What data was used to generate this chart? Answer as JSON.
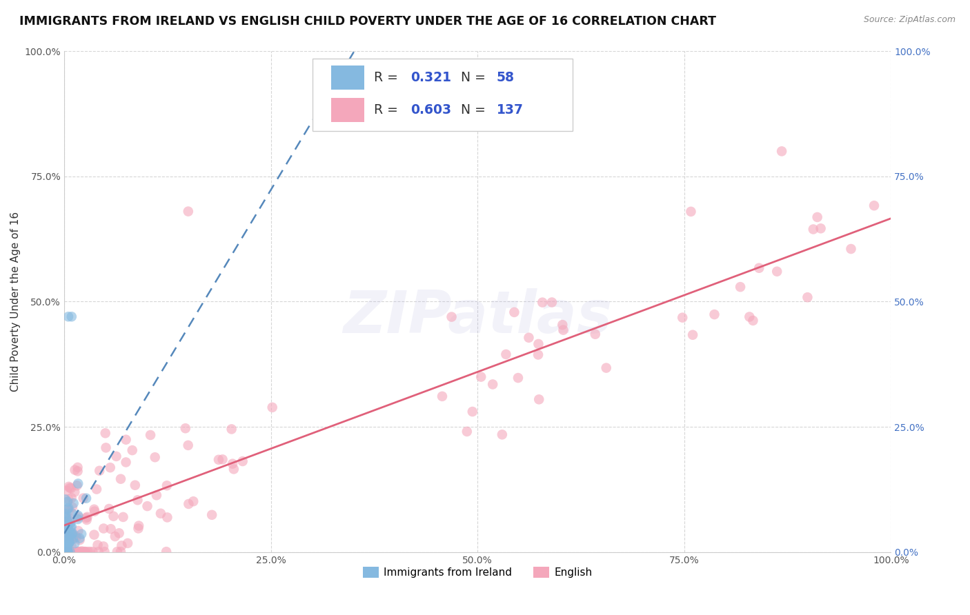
{
  "title": "IMMIGRANTS FROM IRELAND VS ENGLISH CHILD POVERTY UNDER THE AGE OF 16 CORRELATION CHART",
  "source": "Source: ZipAtlas.com",
  "ylabel": "Child Poverty Under the Age of 16",
  "R_blue": 0.321,
  "N_blue": 58,
  "R_pink": 0.603,
  "N_pink": 137,
  "blue_color": "#85b9e0",
  "pink_color": "#f4a7bb",
  "blue_line_color": "#5588bb",
  "pink_line_color": "#e0607a",
  "background_color": "#ffffff",
  "grid_color": "#cccccc",
  "title_fontsize": 12.5,
  "axis_label_fontsize": 11,
  "tick_fontsize": 10,
  "watermark": "ZIPatlas",
  "legend_labels": [
    "Immigrants from Ireland",
    "English"
  ],
  "xlim": [
    0,
    100
  ],
  "ylim": [
    0,
    100
  ],
  "x_ticks": [
    0,
    25,
    50,
    75,
    100
  ],
  "y_ticks": [
    0,
    25,
    50,
    75,
    100
  ]
}
